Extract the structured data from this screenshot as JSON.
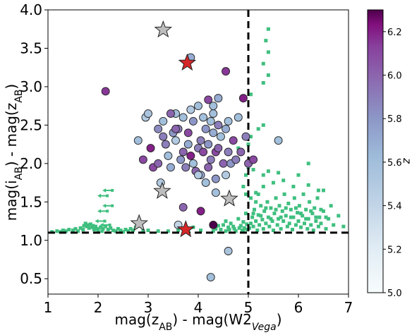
{
  "chart_data": {
    "type": "scatter",
    "title": "",
    "xlabel": "mag(z_AB) - mag(W2_Vega)",
    "ylabel": "mag(i_AB) - mag(z_AB)",
    "xlim": [
      1,
      7
    ],
    "ylim": [
      0.3,
      4.0
    ],
    "x_ticks": [
      "1",
      "2",
      "3",
      "4",
      "5",
      "6",
      "7"
    ],
    "y_ticks": [
      "0.5",
      "1.0",
      "1.5",
      "2.0",
      "2.5",
      "3.0",
      "3.5",
      "4.0"
    ],
    "colorbar": {
      "label": "z",
      "range": [
        5.0,
        6.3
      ],
      "ticks": [
        "5.0",
        "5.2",
        "5.4",
        "5.6",
        "5.8",
        "6.0",
        "6.2"
      ],
      "colormap": "BuPu"
    },
    "cut_lines": {
      "x": 5.0,
      "y": 1.1,
      "style": "dashed",
      "color": "#000000"
    },
    "colors": {
      "field_points": "#3fbf7f",
      "red_stars": "#d62728",
      "grey_stars": "#bdbdbd"
    },
    "field_points": [
      [
        1.08,
        1.11
      ],
      [
        1.18,
        1.12
      ],
      [
        1.25,
        1.11
      ],
      [
        1.3,
        1.13
      ],
      [
        1.36,
        1.12
      ],
      [
        1.42,
        1.14
      ],
      [
        1.5,
        1.13
      ],
      [
        1.55,
        1.15
      ],
      [
        1.6,
        1.12
      ],
      [
        1.65,
        1.16
      ],
      [
        1.7,
        1.14
      ],
      [
        1.72,
        1.19
      ],
      [
        1.75,
        1.22
      ],
      [
        1.78,
        1.18
      ],
      [
        1.8,
        1.2
      ],
      [
        1.82,
        1.16
      ],
      [
        1.85,
        1.21
      ],
      [
        1.88,
        1.17
      ],
      [
        1.9,
        1.19
      ],
      [
        1.92,
        1.14
      ],
      [
        1.95,
        1.18
      ],
      [
        1.98,
        1.15
      ],
      [
        2.0,
        1.13
      ],
      [
        2.05,
        1.17
      ],
      [
        2.08,
        1.12
      ],
      [
        2.1,
        1.15
      ],
      [
        2.15,
        1.18
      ],
      [
        2.2,
        1.14
      ],
      [
        2.25,
        1.16
      ],
      [
        2.3,
        1.13
      ],
      [
        2.35,
        1.12
      ],
      [
        2.4,
        1.15
      ],
      [
        2.45,
        1.13
      ],
      [
        2.5,
        1.11
      ],
      [
        2.55,
        1.14
      ],
      [
        2.6,
        1.12
      ],
      [
        2.65,
        1.15
      ],
      [
        2.7,
        1.13
      ],
      [
        2.75,
        1.17
      ],
      [
        2.9,
        1.12
      ],
      [
        3.0,
        1.13
      ],
      [
        3.2,
        1.12
      ],
      [
        3.4,
        1.12
      ],
      [
        3.6,
        1.13
      ],
      [
        3.8,
        1.14
      ],
      [
        3.9,
        1.17
      ],
      [
        4.05,
        1.13
      ],
      [
        4.3,
        1.12
      ],
      [
        4.35,
        1.15
      ],
      [
        4.4,
        1.19
      ],
      [
        4.45,
        1.14
      ],
      [
        4.5,
        1.2
      ],
      [
        4.55,
        1.25
      ],
      [
        4.6,
        1.17
      ],
      [
        4.65,
        1.22
      ],
      [
        4.7,
        1.18
      ],
      [
        4.75,
        1.12
      ],
      [
        4.8,
        1.28
      ],
      [
        4.85,
        1.19
      ],
      [
        4.88,
        1.13
      ],
      [
        4.9,
        1.24
      ],
      [
        4.92,
        1.16
      ],
      [
        4.95,
        1.35
      ],
      [
        4.97,
        1.21
      ],
      [
        4.98,
        1.14
      ],
      [
        4.55,
        1.12
      ],
      [
        4.62,
        1.14
      ],
      [
        4.72,
        1.15
      ],
      [
        4.82,
        1.16
      ],
      [
        4.9,
        1.12
      ],
      [
        5.02,
        1.16
      ],
      [
        5.05,
        1.22
      ],
      [
        5.08,
        1.3
      ],
      [
        5.1,
        1.18
      ],
      [
        5.12,
        1.4
      ],
      [
        5.15,
        1.25
      ],
      [
        5.18,
        1.13
      ],
      [
        5.2,
        1.33
      ],
      [
        5.22,
        1.2
      ],
      [
        5.25,
        1.45
      ],
      [
        5.28,
        1.27
      ],
      [
        5.3,
        1.15
      ],
      [
        5.32,
        1.38
      ],
      [
        5.35,
        1.22
      ],
      [
        5.38,
        1.5
      ],
      [
        5.4,
        1.3
      ],
      [
        5.42,
        1.18
      ],
      [
        5.45,
        1.42
      ],
      [
        5.48,
        1.25
      ],
      [
        5.5,
        1.13
      ],
      [
        5.52,
        1.35
      ],
      [
        5.55,
        1.55
      ],
      [
        5.58,
        1.2
      ],
      [
        5.6,
        1.28
      ],
      [
        5.62,
        1.45
      ],
      [
        5.65,
        1.15
      ],
      [
        5.68,
        1.38
      ],
      [
        5.7,
        1.25
      ],
      [
        5.72,
        1.6
      ],
      [
        5.75,
        1.32
      ],
      [
        5.78,
        1.18
      ],
      [
        5.8,
        1.48
      ],
      [
        5.82,
        1.22
      ],
      [
        5.85,
        1.4
      ],
      [
        5.88,
        1.14
      ],
      [
        5.9,
        1.3
      ],
      [
        5.92,
        1.55
      ],
      [
        5.95,
        1.2
      ],
      [
        5.98,
        1.36
      ],
      [
        6.0,
        1.25
      ],
      [
        6.02,
        1.45
      ],
      [
        6.05,
        1.17
      ],
      [
        6.08,
        1.32
      ],
      [
        6.1,
        1.6
      ],
      [
        6.12,
        1.22
      ],
      [
        6.15,
        1.4
      ],
      [
        6.18,
        1.15
      ],
      [
        6.2,
        1.28
      ],
      [
        6.22,
        1.5
      ],
      [
        6.25,
        1.2
      ],
      [
        6.28,
        1.35
      ],
      [
        6.3,
        1.13
      ],
      [
        6.32,
        1.42
      ],
      [
        6.35,
        1.25
      ],
      [
        6.38,
        1.55
      ],
      [
        6.4,
        1.18
      ],
      [
        6.42,
        1.3
      ],
      [
        6.45,
        1.22
      ],
      [
        6.5,
        1.38
      ],
      [
        6.55,
        1.15
      ],
      [
        6.6,
        1.28
      ],
      [
        6.65,
        1.45
      ],
      [
        6.7,
        1.2
      ],
      [
        6.8,
        1.32
      ],
      [
        6.9,
        1.18
      ],
      [
        5.1,
        1.35
      ],
      [
        5.25,
        1.32
      ],
      [
        5.35,
        1.42
      ],
      [
        5.45,
        1.28
      ],
      [
        5.55,
        1.4
      ],
      [
        5.65,
        1.3
      ],
      [
        5.75,
        1.42
      ],
      [
        5.85,
        1.3
      ],
      [
        5.95,
        1.42
      ],
      [
        6.05,
        1.35
      ],
      [
        6.15,
        1.28
      ],
      [
        6.25,
        1.38
      ],
      [
        6.35,
        1.3
      ],
      [
        6.45,
        1.4
      ],
      [
        6.55,
        1.3
      ],
      [
        5.05,
        1.55
      ],
      [
        5.15,
        1.62
      ],
      [
        5.3,
        1.7
      ],
      [
        5.5,
        1.75
      ],
      [
        5.7,
        1.78
      ],
      [
        5.9,
        1.7
      ],
      [
        6.2,
        1.72
      ],
      [
        6.5,
        1.65
      ],
      [
        5.4,
        1.9
      ],
      [
        6.0,
        1.85
      ],
      [
        4.8,
        2.05
      ],
      [
        5.0,
        1.95
      ],
      [
        5.05,
        2.0
      ],
      [
        5.1,
        1.92
      ],
      [
        4.95,
        1.85
      ],
      [
        5.2,
        1.6
      ],
      [
        5.3,
        1.85
      ],
      [
        5.6,
        1.88
      ],
      [
        6.2,
        2.0
      ],
      [
        6.4,
        1.65
      ],
      [
        5.05,
        2.9
      ],
      [
        5.2,
        2.45
      ],
      [
        5.3,
        2.5
      ],
      [
        5.3,
        3.05
      ],
      [
        5.3,
        3.3
      ],
      [
        5.35,
        3.6
      ],
      [
        5.4,
        3.15
      ],
      [
        5.4,
        3.45
      ],
      [
        5.4,
        3.75
      ],
      [
        5.6,
        2.3
      ],
      [
        4.8,
        2.2
      ],
      [
        5.0,
        2.25
      ],
      [
        5.05,
        2.35
      ],
      [
        4.9,
        1.7
      ],
      [
        4.95,
        1.6
      ],
      [
        5.15,
        1.5
      ]
    ],
    "arrow_points": [
      [
        2.2,
        1.65
      ],
      [
        2.1,
        1.58
      ],
      [
        2.2,
        1.45
      ],
      [
        2.1,
        1.38
      ],
      [
        2.05,
        1.25
      ],
      [
        2.15,
        1.2
      ]
    ],
    "highlighted_points": [
      [
        2.15,
        2.94,
        6.15
      ],
      [
        2.8,
        2.3,
        5.6
      ],
      [
        2.9,
        2.05,
        6.1
      ],
      [
        2.95,
        2.6,
        5.5
      ],
      [
        3.0,
        2.65,
        5.55
      ],
      [
        3.05,
        2.2,
        6.2
      ],
      [
        3.1,
        1.95,
        6.1
      ],
      [
        3.2,
        2.45,
        5.85
      ],
      [
        3.2,
        2.0,
        6.0
      ],
      [
        3.25,
        1.75,
        5.5
      ],
      [
        3.3,
        2.55,
        5.6
      ],
      [
        3.35,
        2.25,
        5.9
      ],
      [
        3.4,
        2.1,
        5.6
      ],
      [
        3.45,
        1.95,
        5.7
      ],
      [
        3.5,
        2.4,
        5.8
      ],
      [
        3.55,
        2.65,
        5.6
      ],
      [
        3.55,
        2.3,
        5.5
      ],
      [
        3.6,
        2.45,
        5.9
      ],
      [
        3.6,
        1.2,
        5.4
      ],
      [
        3.65,
        2.05,
        5.8
      ],
      [
        3.7,
        2.15,
        6.0
      ],
      [
        3.7,
        2.6,
        5.6
      ],
      [
        3.75,
        1.95,
        5.9
      ],
      [
        3.8,
        2.4,
        6.1
      ],
      [
        3.8,
        2.25,
        5.7
      ],
      [
        3.85,
        2.7,
        5.5
      ],
      [
        3.85,
        2.1,
        6.2
      ],
      [
        3.9,
        2.0,
        5.6
      ],
      [
        3.9,
        2.55,
        5.8
      ],
      [
        3.95,
        1.9,
        6.0
      ],
      [
        4.0,
        2.75,
        5.6
      ],
      [
        4.0,
        2.2,
        5.9
      ],
      [
        4.05,
        2.3,
        5.9
      ],
      [
        4.05,
        1.85,
        5.7
      ],
      [
        4.1,
        2.6,
        5.6
      ],
      [
        4.1,
        2.15,
        6.1
      ],
      [
        4.15,
        1.75,
        5.6
      ],
      [
        4.15,
        2.45,
        5.8
      ],
      [
        4.2,
        2.25,
        5.8
      ],
      [
        4.2,
        1.95,
        6.0
      ],
      [
        4.25,
        2.55,
        5.6
      ],
      [
        4.25,
        2.05,
        5.9
      ],
      [
        4.3,
        2.4,
        5.7
      ],
      [
        4.3,
        2.65,
        5.6
      ],
      [
        4.35,
        2.15,
        6.1
      ],
      [
        4.35,
        1.8,
        5.8
      ],
      [
        4.4,
        2.5,
        5.9
      ],
      [
        4.4,
        2.2,
        6.0
      ],
      [
        4.45,
        2.35,
        5.6
      ],
      [
        4.5,
        2.0,
        6.0
      ],
      [
        4.55,
        2.45,
        5.7
      ],
      [
        4.55,
        1.85,
        5.5
      ],
      [
        4.6,
        2.15,
        5.9
      ],
      [
        4.6,
        2.55,
        5.6
      ],
      [
        4.65,
        2.0,
        5.8
      ],
      [
        4.7,
        2.3,
        6.1
      ],
      [
        4.75,
        2.05,
        5.9
      ],
      [
        4.8,
        2.6,
        5.6
      ],
      [
        4.85,
        2.15,
        6.0
      ],
      [
        4.9,
        2.85,
        6.2
      ],
      [
        4.95,
        2.35,
        5.9
      ],
      [
        5.0,
        2.0,
        6.0
      ],
      [
        5.1,
        2.05,
        6.1
      ],
      [
        5.6,
        2.3,
        5.6
      ],
      [
        3.85,
        3.38,
        5.7
      ],
      [
        4.2,
        2.83,
        6.1
      ],
      [
        4.3,
        2.75,
        5.6
      ],
      [
        4.55,
        3.2,
        6.15
      ],
      [
        4.35,
        1.62,
        5.6
      ],
      [
        4.4,
        2.85,
        5.7
      ],
      [
        3.7,
        1.43,
        6.0
      ],
      [
        4.05,
        1.38,
        6.2
      ],
      [
        4.0,
        1.85,
        5.5
      ],
      [
        4.3,
        1.2,
        6.3
      ],
      [
        4.6,
        0.86,
        5.55
      ],
      [
        4.25,
        0.52,
        5.6
      ],
      [
        3.55,
        2.45,
        6.0
      ],
      [
        3.45,
        2.65,
        6.0
      ],
      [
        3.3,
        2.35,
        5.9
      ]
    ],
    "red_stars": [
      [
        3.78,
        3.31
      ],
      [
        3.75,
        1.14
      ]
    ],
    "grey_stars": [
      [
        3.3,
        3.74
      ],
      [
        2.82,
        1.22
      ],
      [
        3.28,
        1.64
      ],
      [
        4.62,
        1.54
      ]
    ]
  }
}
